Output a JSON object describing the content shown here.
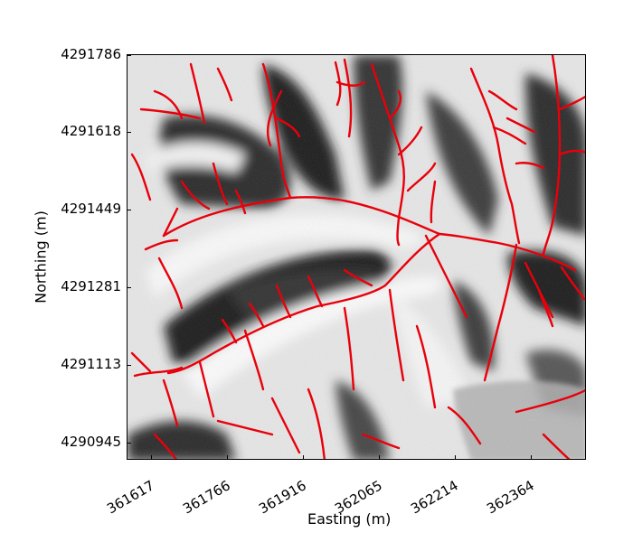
{
  "axes": {
    "xlabel": "Easting (m)",
    "ylabel": "Northing (m)",
    "xticks": [
      "361617",
      "361766",
      "361916",
      "362065",
      "362214",
      "362364"
    ],
    "yticks": [
      "4291786",
      "4291618",
      "4291449",
      "4291281",
      "4291113",
      "4290945"
    ]
  },
  "colors": {
    "drainage_network": "#e8000b",
    "hillshade_light": "#f2f2f2",
    "hillshade_dark": "#1a1a1a",
    "flat_area": "#b0b0b0"
  }
}
